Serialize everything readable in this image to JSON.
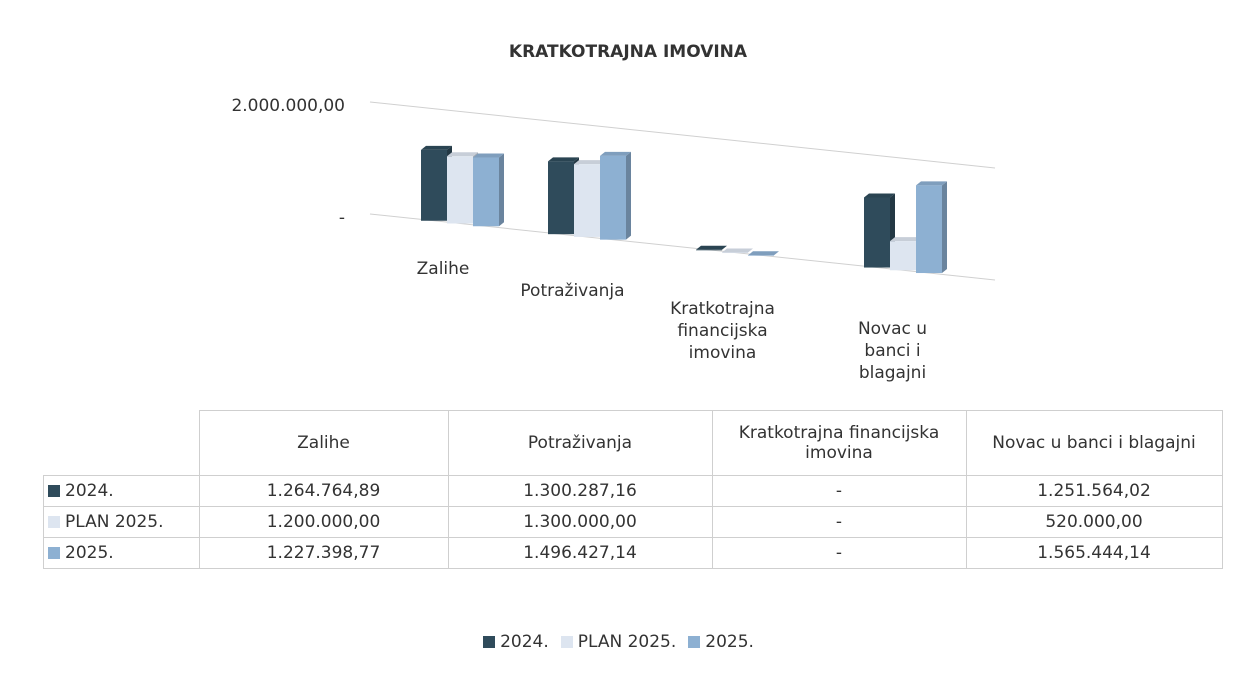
{
  "chart_data": {
    "type": "bar",
    "title": "KRATKOTRAJNA IMOVINA",
    "categories": [
      "Zalihe",
      "Potraživanja",
      "Kratkotrajna financijska imovina",
      "Novac u banci i blagajni"
    ],
    "series": [
      {
        "name": "2024.",
        "color": "#2f4b5b",
        "values": [
          1264764.89,
          1300287.16,
          0,
          1251564.02
        ],
        "value_labels": [
          "1.264.764,89",
          "1.300.287,16",
          "-",
          "1.251.564,02"
        ]
      },
      {
        "name": "PLAN 2025.",
        "color": "#dde5f0",
        "values": [
          1200000,
          1300000,
          0,
          520000
        ],
        "value_labels": [
          "1.200.000,00",
          "1.300.000,00",
          "-",
          "520.000,00"
        ]
      },
      {
        "name": "2025.",
        "color": "#8db0d2",
        "values": [
          1227398.77,
          1496427.14,
          0,
          1565444.14
        ],
        "value_labels": [
          "1.227.398,77",
          "1.496.427,14",
          "-",
          "1.565.444,14"
        ]
      }
    ],
    "ylim": [
      0,
      2000000
    ],
    "yticks": [
      {
        "value": 0,
        "label": "-"
      },
      {
        "value": 2000000,
        "label": "2.000.000,00"
      }
    ],
    "grid": true,
    "legend": "bottom"
  }
}
